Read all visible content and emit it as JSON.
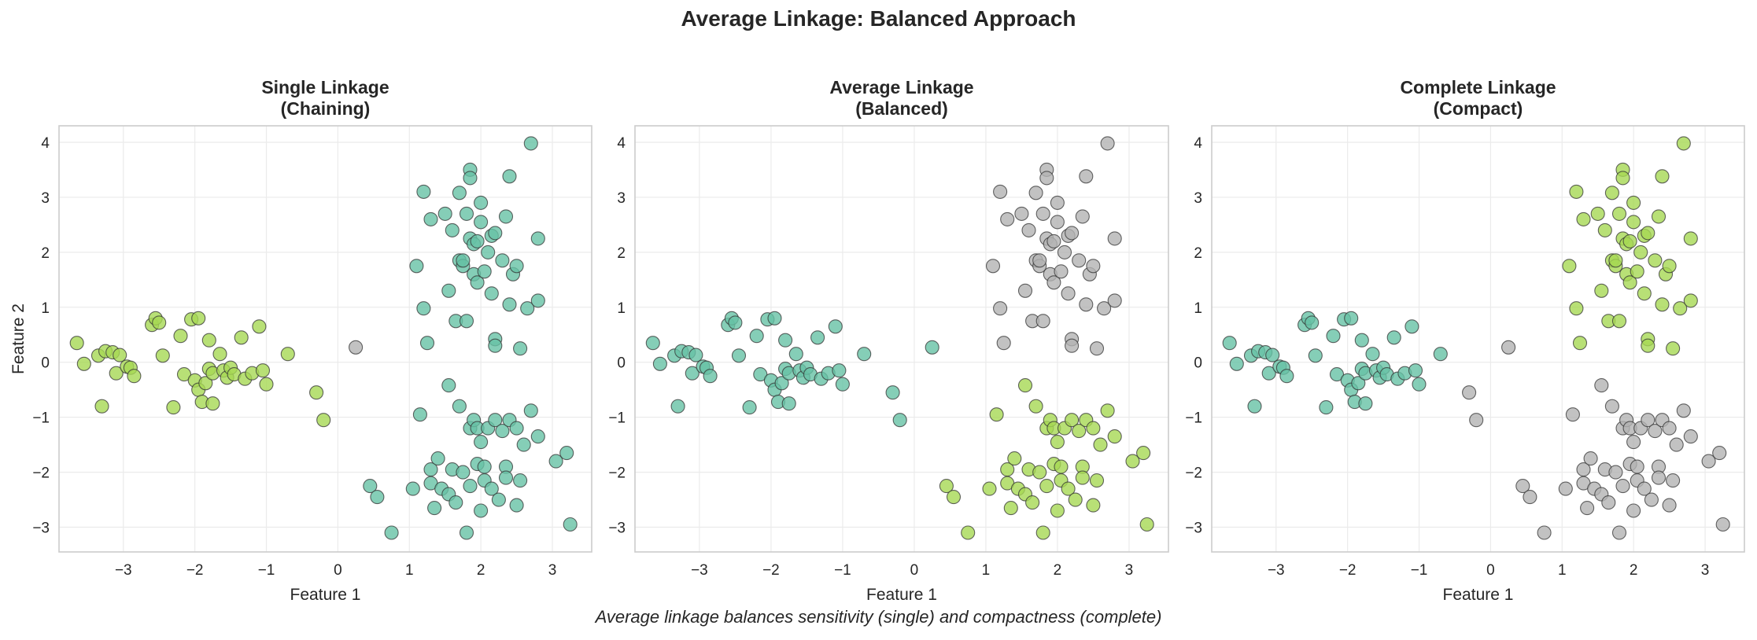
{
  "figure": {
    "title": "Average Linkage: Balanced Approach",
    "caption": "Average linkage balances sensitivity (single) and compactness (complete)"
  },
  "colors": {
    "teal": "#66c2a5",
    "lime": "#a6d854",
    "gray": "#b3b3b3"
  },
  "chart_data": [
    {
      "type": "scatter",
      "title": "Single Linkage\n(Chaining)",
      "xlabel": "Feature 1",
      "ylabel": "Feature 2",
      "xlim": [
        -3.9,
        3.55
      ],
      "ylim": [
        -3.45,
        4.3
      ],
      "xticks": [
        -3,
        -2,
        -1,
        0,
        1,
        2,
        3
      ],
      "yticks": [
        -3,
        -2,
        -1,
        0,
        1,
        2,
        3,
        4
      ],
      "grid": true,
      "cluster_colors": [
        "lime",
        "teal",
        "gray"
      ]
    },
    {
      "type": "scatter",
      "title": "Average Linkage\n(Balanced)",
      "xlabel": "Feature 1",
      "ylabel": "",
      "xlim": [
        -3.9,
        3.55
      ],
      "ylim": [
        -3.45,
        4.3
      ],
      "xticks": [
        -3,
        -2,
        -1,
        0,
        1,
        2,
        3
      ],
      "yticks": [
        -3,
        -2,
        -1,
        0,
        1,
        2,
        3,
        4
      ],
      "grid": true,
      "cluster_colors": [
        "teal",
        "gray",
        "lime"
      ]
    },
    {
      "type": "scatter",
      "title": "Complete Linkage\n(Compact)",
      "xlabel": "Feature 1",
      "ylabel": "",
      "xlim": [
        -3.9,
        3.55
      ],
      "ylim": [
        -3.45,
        4.3
      ],
      "xticks": [
        -3,
        -2,
        -1,
        0,
        1,
        2,
        3
      ],
      "yticks": [
        -3,
        -2,
        -1,
        0,
        1,
        2,
        3,
        4
      ],
      "grid": true,
      "cluster_colors": [
        "teal",
        "lime",
        "gray"
      ]
    }
  ],
  "points": {
    "left_blob": [
      [
        -3.65,
        0.35
      ],
      [
        -3.55,
        -0.03
      ],
      [
        -3.35,
        0.12
      ],
      [
        -3.3,
        -0.8
      ],
      [
        -3.25,
        0.2
      ],
      [
        -3.15,
        0.18
      ],
      [
        -3.1,
        -0.2
      ],
      [
        -3.05,
        0.13
      ],
      [
        -2.95,
        -0.08
      ],
      [
        -2.9,
        -0.1
      ],
      [
        -2.85,
        -0.25
      ],
      [
        -2.6,
        0.68
      ],
      [
        -2.55,
        0.8
      ],
      [
        -2.5,
        0.72
      ],
      [
        -2.45,
        0.12
      ],
      [
        -2.3,
        -0.82
      ],
      [
        -2.2,
        0.48
      ],
      [
        -2.15,
        -0.22
      ],
      [
        -2.05,
        0.78
      ],
      [
        -2.0,
        -0.33
      ],
      [
        -1.95,
        0.8
      ],
      [
        -1.95,
        -0.5
      ],
      [
        -1.9,
        -0.72
      ],
      [
        -1.85,
        -0.38
      ],
      [
        -1.8,
        -0.12
      ],
      [
        -1.8,
        0.4
      ],
      [
        -1.75,
        -0.2
      ],
      [
        -1.75,
        -0.75
      ],
      [
        -1.65,
        0.15
      ],
      [
        -1.6,
        -0.15
      ],
      [
        -1.55,
        -0.28
      ],
      [
        -1.5,
        -0.1
      ],
      [
        -1.45,
        -0.22
      ],
      [
        -1.35,
        0.45
      ],
      [
        -1.3,
        -0.3
      ],
      [
        -1.2,
        -0.2
      ],
      [
        -1.1,
        0.65
      ],
      [
        -1.05,
        -0.15
      ],
      [
        -1.0,
        -0.4
      ],
      [
        -0.7,
        0.15
      ],
      [
        -0.3,
        -0.55
      ],
      [
        -0.2,
        -1.05
      ]
    ],
    "outlier": [
      [
        0.25,
        0.27
      ]
    ],
    "top_blob": [
      [
        1.1,
        1.75
      ],
      [
        1.2,
        3.1
      ],
      [
        1.2,
        0.98
      ],
      [
        1.25,
        0.35
      ],
      [
        1.3,
        2.6
      ],
      [
        1.5,
        2.7
      ],
      [
        1.55,
        1.3
      ],
      [
        1.6,
        2.4
      ],
      [
        1.65,
        0.75
      ],
      [
        1.7,
        3.08
      ],
      [
        1.7,
        1.85
      ],
      [
        1.75,
        1.75
      ],
      [
        1.75,
        1.85
      ],
      [
        1.8,
        2.7
      ],
      [
        1.8,
        0.75
      ],
      [
        1.85,
        3.5
      ],
      [
        1.85,
        3.35
      ],
      [
        1.85,
        2.25
      ],
      [
        1.9,
        2.15
      ],
      [
        1.9,
        1.6
      ],
      [
        1.95,
        2.2
      ],
      [
        1.95,
        1.45
      ],
      [
        2.0,
        2.9
      ],
      [
        2.0,
        2.55
      ],
      [
        2.05,
        1.65
      ],
      [
        2.1,
        2.0
      ],
      [
        2.15,
        1.25
      ],
      [
        2.15,
        2.3
      ],
      [
        2.2,
        2.35
      ],
      [
        2.2,
        0.42
      ],
      [
        2.2,
        0.3
      ],
      [
        2.3,
        1.85
      ],
      [
        2.35,
        2.65
      ],
      [
        2.4,
        1.05
      ],
      [
        2.4,
        3.38
      ],
      [
        2.45,
        1.6
      ],
      [
        2.5,
        1.75
      ],
      [
        2.55,
        0.25
      ],
      [
        2.65,
        0.98
      ],
      [
        2.7,
        3.98
      ],
      [
        2.8,
        2.25
      ],
      [
        2.8,
        1.12
      ]
    ],
    "bottom_blob": [
      [
        0.45,
        -2.25
      ],
      [
        0.55,
        -2.45
      ],
      [
        0.75,
        -3.1
      ],
      [
        1.05,
        -2.3
      ],
      [
        1.15,
        -0.95
      ],
      [
        1.3,
        -1.95
      ],
      [
        1.3,
        -2.2
      ],
      [
        1.35,
        -2.65
      ],
      [
        1.4,
        -1.75
      ],
      [
        1.45,
        -2.3
      ],
      [
        1.55,
        -0.42
      ],
      [
        1.55,
        -2.4
      ],
      [
        1.6,
        -1.95
      ],
      [
        1.65,
        -2.55
      ],
      [
        1.7,
        -0.8
      ],
      [
        1.75,
        -2.0
      ],
      [
        1.8,
        -3.1
      ],
      [
        1.85,
        -2.25
      ],
      [
        1.85,
        -1.2
      ],
      [
        1.9,
        -1.05
      ],
      [
        1.95,
        -1.2
      ],
      [
        1.95,
        -1.85
      ],
      [
        2.0,
        -2.7
      ],
      [
        2.0,
        -1.45
      ],
      [
        2.05,
        -2.15
      ],
      [
        2.05,
        -1.9
      ],
      [
        2.1,
        -1.2
      ],
      [
        2.15,
        -2.3
      ],
      [
        2.2,
        -1.05
      ],
      [
        2.25,
        -2.5
      ],
      [
        2.3,
        -1.25
      ],
      [
        2.35,
        -1.9
      ],
      [
        2.35,
        -2.1
      ],
      [
        2.4,
        -1.05
      ],
      [
        2.5,
        -2.6
      ],
      [
        2.5,
        -1.2
      ],
      [
        2.55,
        -2.15
      ],
      [
        2.6,
        -1.5
      ],
      [
        2.7,
        -0.88
      ],
      [
        2.8,
        -1.35
      ],
      [
        3.05,
        -1.8
      ],
      [
        3.2,
        -1.65
      ],
      [
        3.25,
        -2.95
      ]
    ]
  },
  "assignments": [
    {
      "left_blob": 0,
      "outlier": 2,
      "top_blob": 1,
      "bottom_blob": 1
    },
    {
      "left_blob": 0,
      "outlier": 0,
      "top_blob": 1,
      "bottom_blob": 2
    },
    {
      "left_blob": 0,
      "outlier": 2,
      "top_blob": 1,
      "bottom_blob": 2
    }
  ],
  "single_linkage_bridge_points_gray": [],
  "overrides": [
    {
      "panel": 0,
      "group": "left_blob",
      "indices": [
        40,
        41
      ],
      "cluster": 0
    },
    {
      "panel": 2,
      "group": "left_blob",
      "indices": [
        40,
        41
      ],
      "cluster": 2
    },
    {
      "panel": 1,
      "group": "left_blob",
      "indices": [
        40,
        41
      ],
      "cluster": 0
    }
  ]
}
